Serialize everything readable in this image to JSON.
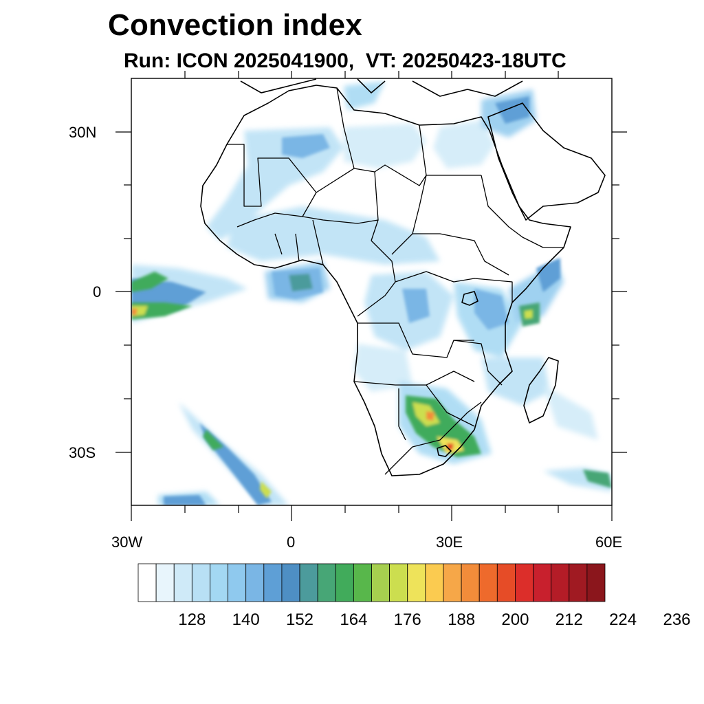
{
  "title": "Convection index",
  "subtitle": "Run: ICON 2025041900,  VT: 20250423-18UTC",
  "axes": {
    "lon_labels": [
      "30W",
      "0",
      "30E",
      "60E"
    ],
    "lat_labels": [
      "30N",
      "0",
      "30S"
    ],
    "lon_range": [
      -30,
      60
    ],
    "lat_range": [
      -40,
      40
    ]
  },
  "colorbar": {
    "labels": [
      "128",
      "140",
      "152",
      "164",
      "176",
      "188",
      "200",
      "212",
      "224",
      "236"
    ],
    "colors": [
      "#ffffff",
      "#e8f5fc",
      "#cfeaf8",
      "#b8e0f5",
      "#a3d8f3",
      "#8fc9ee",
      "#7ab6e5",
      "#5e9fd6",
      "#4e8fc4",
      "#4c9b9c",
      "#47a676",
      "#41ab5b",
      "#58b74b",
      "#a6cf4f",
      "#ccde4f",
      "#eee35a",
      "#fbcb50",
      "#f6a748",
      "#f28c3a",
      "#ee6a2c",
      "#e64c27",
      "#dc2e2a",
      "#c8202d",
      "#b41c27",
      "#a01a22",
      "#8b161c"
    ]
  },
  "map_layers": [
    "coastlines",
    "country-borders",
    "convection-index-field"
  ]
}
